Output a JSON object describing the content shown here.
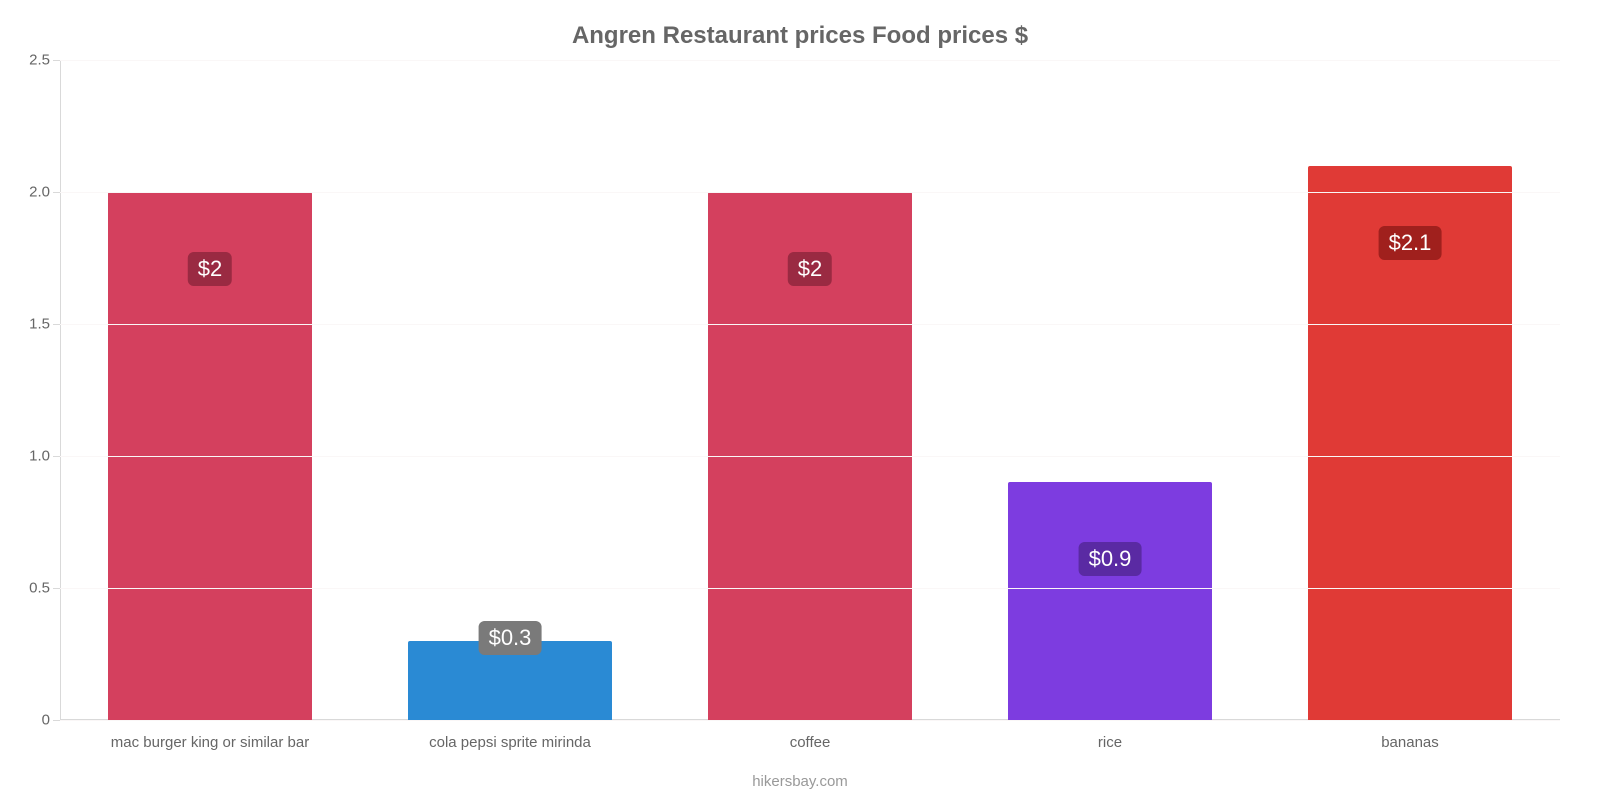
{
  "chart": {
    "type": "bar",
    "title": "Angren Restaurant prices Food prices $",
    "title_fontsize": 24,
    "title_color": "#666666",
    "background_color": "#ffffff",
    "grid_color": "#faf7f7",
    "axis_color": "#d9d9d9",
    "tick_label_color": "#666666",
    "tick_label_fontsize": 15,
    "ylim": [
      0,
      2.5
    ],
    "ytick_step": 0.5,
    "yticks": [
      {
        "value": 0,
        "label": "0"
      },
      {
        "value": 0.5,
        "label": "0.5"
      },
      {
        "value": 1.0,
        "label": "1.0"
      },
      {
        "value": 1.5,
        "label": "1.5"
      },
      {
        "value": 2.0,
        "label": "2.0"
      },
      {
        "value": 2.5,
        "label": "2.5"
      }
    ],
    "bar_width": 0.68,
    "badge_fontsize": 22,
    "badge_text_color": "#ffffff",
    "categories": [
      {
        "label": "mac burger king or similar bar",
        "value": 2.0,
        "display": "$2",
        "bar_color": "#d4405e",
        "badge_bg": "#9a2a42"
      },
      {
        "label": "cola pepsi sprite mirinda",
        "value": 0.3,
        "display": "$0.3",
        "bar_color": "#2a8ad4",
        "badge_bg": "#7a7a7a"
      },
      {
        "label": "coffee",
        "value": 2.0,
        "display": "$2",
        "bar_color": "#d4405e",
        "badge_bg": "#9a2a42"
      },
      {
        "label": "rice",
        "value": 0.9,
        "display": "$0.9",
        "bar_color": "#7d3ce0",
        "badge_bg": "#5a2aa3"
      },
      {
        "label": "bananas",
        "value": 2.1,
        "display": "$2.1",
        "bar_color": "#e03a36",
        "badge_bg": "#a0201d"
      }
    ],
    "source_text": "hikersbay.com",
    "source_color": "#999999",
    "source_fontsize": 15
  }
}
